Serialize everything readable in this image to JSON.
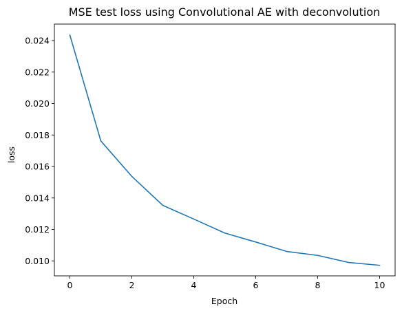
{
  "chart_data": {
    "type": "line",
    "title": "MSE test loss using Convolutional AE with deconvolution",
    "xlabel": "Epoch",
    "ylabel": "loss",
    "xlim": [
      -0.5,
      10.5
    ],
    "ylim": [
      0.00905,
      0.02505
    ],
    "xticks": [
      0,
      2,
      4,
      6,
      8,
      10
    ],
    "xtick_labels": [
      "0",
      "2",
      "4",
      "6",
      "8",
      "10"
    ],
    "yticks": [
      0.01,
      0.012,
      0.014,
      0.016,
      0.018,
      0.02,
      0.022,
      0.024
    ],
    "ytick_labels": [
      "0.010",
      "0.012",
      "0.014",
      "0.016",
      "0.018",
      "0.020",
      "0.022",
      "0.024"
    ],
    "grid": false,
    "series": [
      {
        "color": "#1f77b4",
        "x": [
          0,
          1,
          2,
          3,
          4,
          5,
          6,
          7,
          8,
          9,
          10
        ],
        "values": [
          0.02435,
          0.01762,
          0.01537,
          0.01353,
          0.01266,
          0.01177,
          0.0112,
          0.0106,
          0.01035,
          0.0099,
          0.00972
        ]
      }
    ]
  }
}
